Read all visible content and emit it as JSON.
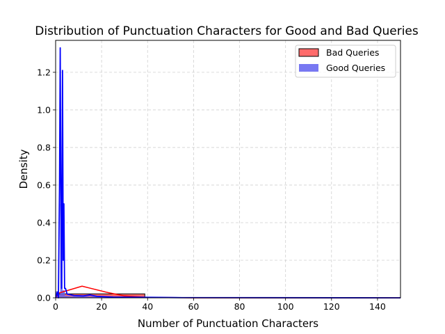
{
  "chart_data": {
    "type": "histogram",
    "title": "Distribution of Punctuation Characters for Good and Bad Queries",
    "xlabel": "Number of Punctuation Characters",
    "ylabel": "Density",
    "xlim": [
      0,
      150
    ],
    "ylim": [
      0,
      1.37
    ],
    "xticks": [
      0,
      20,
      40,
      60,
      80,
      100,
      120,
      140
    ],
    "yticks": [
      0.0,
      0.2,
      0.4,
      0.6,
      0.8,
      1.0,
      1.2
    ],
    "grid": true,
    "legend_position": "top-right",
    "series": [
      {
        "name": "Bad Queries",
        "color": "#ff0000",
        "bins": [
          {
            "x0": 0,
            "x1": 1.3,
            "density": 0.025
          },
          {
            "x0": 1.3,
            "x1": 38.8,
            "density": 0.021
          }
        ],
        "kde": [
          [
            0,
            0.0
          ],
          [
            1.3,
            0.025
          ],
          [
            11.5,
            0.062
          ],
          [
            22,
            0.03
          ],
          [
            30,
            0.01
          ],
          [
            39,
            0.003
          ],
          [
            60,
            0.0
          ],
          [
            150,
            0.0
          ]
        ]
      },
      {
        "name": "Good Queries",
        "color": "#0000ff",
        "bins": [
          {
            "x0": 0,
            "x1": 1,
            "density": 0.035
          },
          {
            "x0": 1,
            "x1": 2,
            "density": 0.02
          },
          {
            "x0": 2,
            "x1": 3,
            "density": 0.5
          },
          {
            "x0": 3,
            "x1": 4,
            "density": 0.04
          },
          {
            "x0": 4,
            "x1": 5,
            "density": 0.012
          },
          {
            "x0": 5,
            "x1": 6,
            "density": 0.01
          },
          {
            "x0": 6,
            "x1": 10,
            "density": 0.008
          },
          {
            "x0": 10,
            "x1": 20,
            "density": 0.007
          },
          {
            "x0": 20,
            "x1": 30,
            "density": 0.004
          },
          {
            "x0": 30,
            "x1": 40,
            "density": 0.003
          },
          {
            "x0": 40,
            "x1": 55,
            "density": 0.002
          }
        ],
        "kde": [
          [
            0,
            0.0
          ],
          [
            0.8,
            0.03
          ],
          [
            1.2,
            0.0
          ],
          [
            1.7,
            0.6
          ],
          [
            2.0,
            1.33
          ],
          [
            2.3,
            0.5
          ],
          [
            2.6,
            0.05
          ],
          [
            3.0,
            1.21
          ],
          [
            3.3,
            0.2
          ],
          [
            3.6,
            0.5
          ],
          [
            3.9,
            0.05
          ],
          [
            4.3,
            0.05
          ],
          [
            5,
            0.02
          ],
          [
            8,
            0.012
          ],
          [
            12,
            0.01
          ],
          [
            15,
            0.015
          ],
          [
            18,
            0.008
          ],
          [
            25,
            0.004
          ],
          [
            35,
            0.003
          ],
          [
            45,
            0.002
          ],
          [
            55,
            0.001
          ],
          [
            150,
            0.0
          ]
        ]
      }
    ]
  }
}
